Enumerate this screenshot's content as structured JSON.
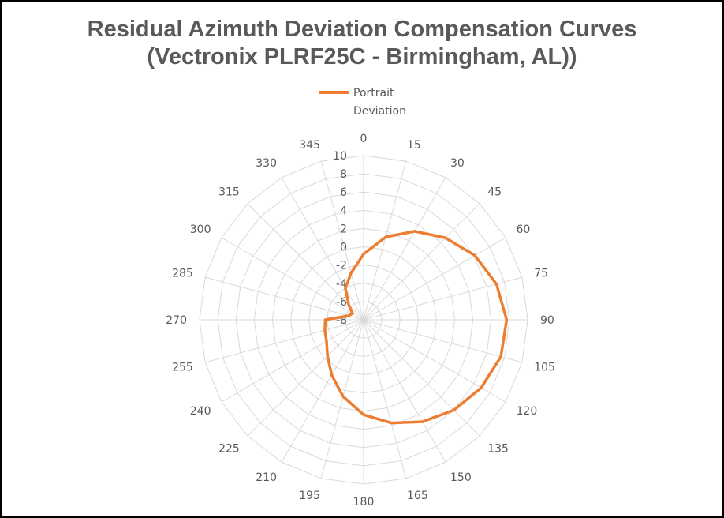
{
  "chart_data": {
    "type": "radar",
    "title": [
      "Residual Azimuth Deviation Compensation Curves",
      "(Vectronix PLRF25C - Birmingham, AL))"
    ],
    "categories": [
      "0",
      "15",
      "30",
      "45",
      "60",
      "75",
      "90",
      "105",
      "120",
      "135",
      "150",
      "165",
      "180",
      "195",
      "210",
      "225",
      "240",
      "255",
      "270",
      "285",
      "300",
      "315",
      "330",
      "345"
    ],
    "radial_ticks": [
      "-8",
      "-6",
      "-4",
      "-2",
      "0",
      "2",
      "4",
      "6",
      "8",
      "10"
    ],
    "rmin": -8,
    "rmax": 10,
    "legend": {
      "position": "top",
      "entries": [
        "Portrait Deviation"
      ]
    },
    "grid": true,
    "series": [
      {
        "name": "Portrait Deviation",
        "color": "#ED7D31",
        "values": [
          -0.8,
          1.4,
          3.2,
          4.7,
          6.1,
          7.1,
          7.7,
          7.6,
          6.9,
          6.0,
          4.9,
          3.7,
          2.4,
          0.7,
          -1.0,
          -2.4,
          -3.3,
          -3.6,
          -3.8,
          -6.3,
          -6.6,
          -5.7,
          -4.0,
          -2.7
        ]
      }
    ]
  }
}
